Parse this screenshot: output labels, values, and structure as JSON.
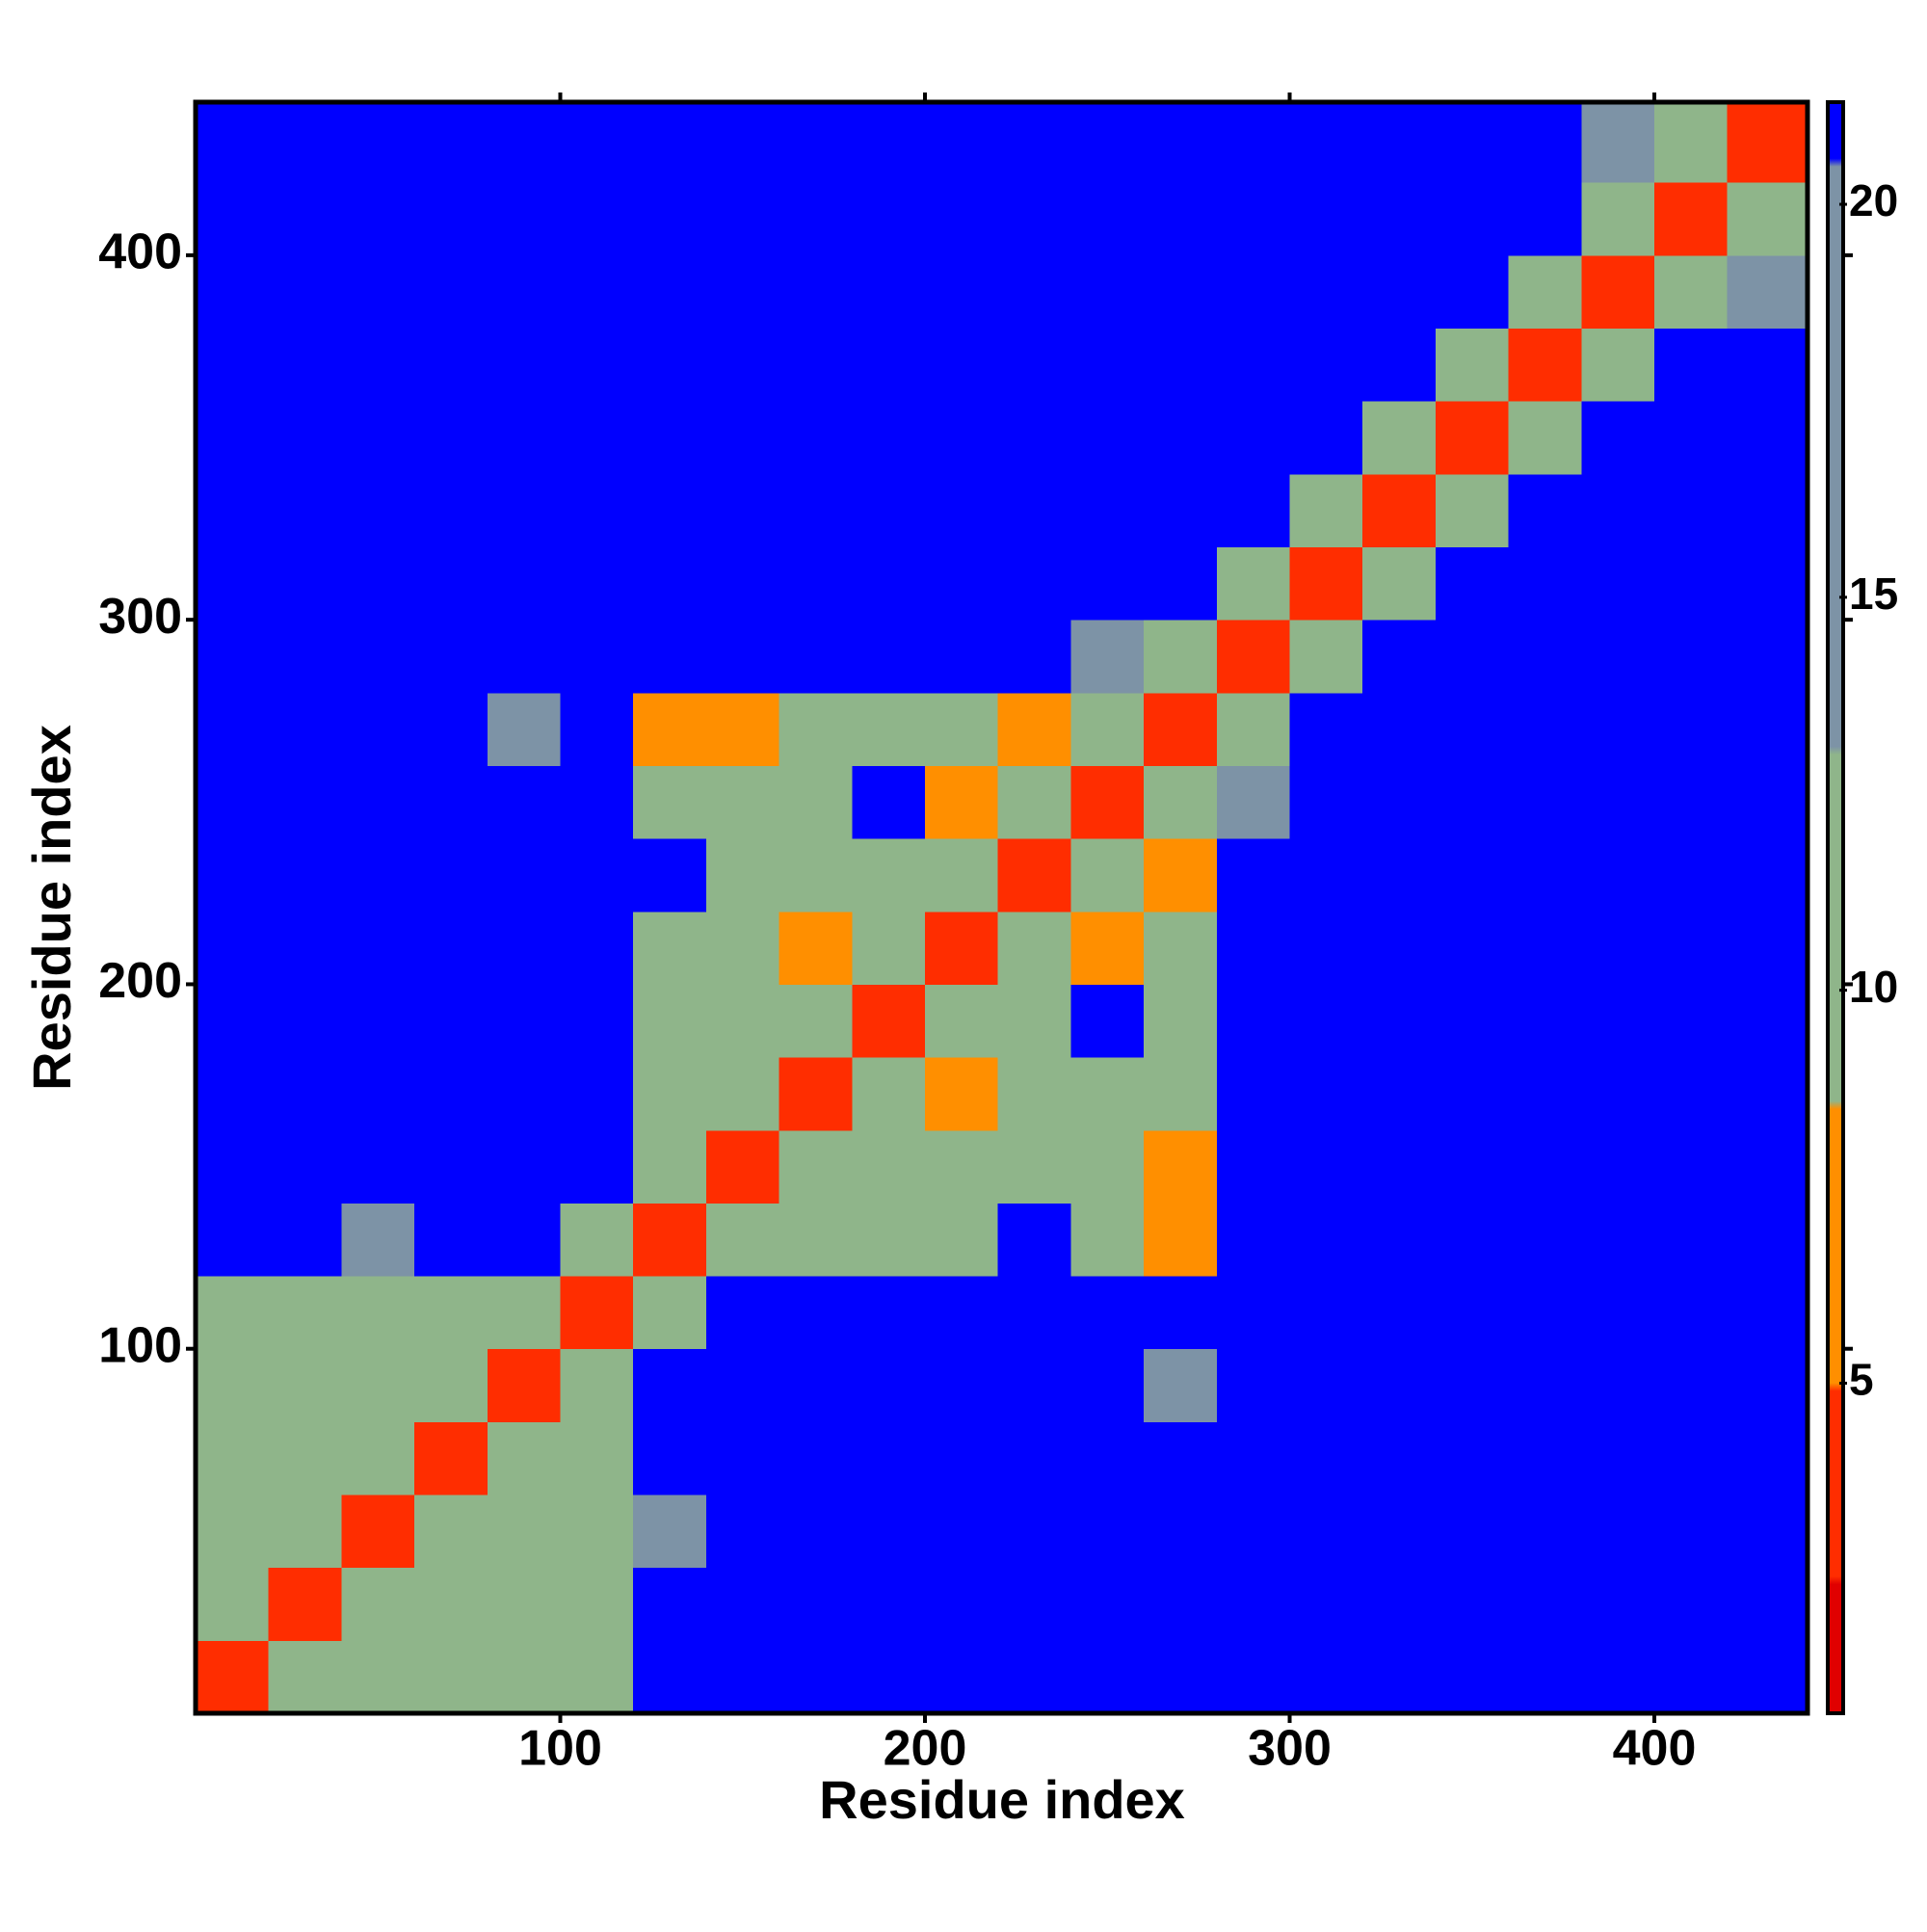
{
  "chart_data": {
    "type": "heatmap",
    "x_label": "Residue index",
    "y_label": "Residue index",
    "bins": [
      0,
      20,
      40,
      60,
      80,
      100,
      120,
      140,
      160,
      180,
      200,
      220,
      240,
      260,
      280,
      300,
      320,
      340,
      360,
      380,
      400,
      420,
      442
    ],
    "z": [
      [
        3,
        10,
        12,
        12,
        12,
        12,
        21,
        21,
        21,
        21,
        21,
        21,
        21,
        21,
        21,
        21,
        21,
        21,
        21,
        21,
        21,
        21
      ],
      [
        10,
        3,
        10,
        12,
        12,
        12,
        21,
        21,
        21,
        21,
        21,
        21,
        21,
        21,
        21,
        21,
        21,
        21,
        21,
        21,
        21,
        21
      ],
      [
        12,
        10,
        3,
        10,
        12,
        12,
        13,
        21,
        21,
        21,
        21,
        21,
        21,
        21,
        21,
        21,
        21,
        21,
        21,
        21,
        21,
        21
      ],
      [
        12,
        12,
        10,
        3,
        10,
        12,
        21,
        21,
        21,
        21,
        21,
        21,
        21,
        21,
        21,
        21,
        21,
        21,
        21,
        21,
        21,
        21
      ],
      [
        12,
        12,
        12,
        10,
        3,
        10,
        21,
        21,
        21,
        21,
        21,
        21,
        21,
        14,
        21,
        21,
        21,
        21,
        21,
        21,
        21,
        21
      ],
      [
        12,
        12,
        12,
        12,
        10,
        3,
        10,
        21,
        21,
        21,
        21,
        21,
        21,
        21,
        21,
        21,
        21,
        21,
        21,
        21,
        21,
        21
      ],
      [
        21,
        21,
        13,
        21,
        21,
        10,
        3,
        10,
        12,
        12,
        12,
        21,
        12,
        8,
        21,
        21,
        21,
        21,
        21,
        21,
        21,
        21
      ],
      [
        21,
        21,
        21,
        21,
        21,
        21,
        10,
        3,
        10,
        12,
        12,
        12,
        12,
        8,
        21,
        21,
        21,
        21,
        21,
        21,
        21,
        21
      ],
      [
        21,
        21,
        21,
        21,
        21,
        21,
        12,
        10,
        3,
        10,
        8,
        12,
        12,
        12,
        21,
        21,
        21,
        21,
        21,
        21,
        21,
        21
      ],
      [
        21,
        21,
        21,
        21,
        21,
        21,
        12,
        12,
        10,
        3,
        10,
        12,
        21,
        12,
        21,
        21,
        21,
        21,
        21,
        21,
        21,
        21
      ],
      [
        21,
        21,
        21,
        21,
        21,
        21,
        12,
        12,
        8,
        10,
        3,
        10,
        8,
        12,
        21,
        21,
        21,
        21,
        21,
        21,
        21,
        21
      ],
      [
        21,
        21,
        21,
        21,
        21,
        21,
        21,
        12,
        12,
        12,
        10,
        3,
        10,
        8,
        21,
        21,
        21,
        21,
        21,
        21,
        21,
        21
      ],
      [
        21,
        21,
        21,
        21,
        21,
        21,
        12,
        12,
        12,
        21,
        8,
        10,
        3,
        10,
        13,
        21,
        21,
        21,
        21,
        21,
        21,
        21
      ],
      [
        21,
        21,
        21,
        21,
        14,
        21,
        8,
        8,
        12,
        12,
        12,
        8,
        10,
        3,
        10,
        21,
        21,
        21,
        21,
        21,
        21,
        21
      ],
      [
        21,
        21,
        21,
        21,
        21,
        21,
        21,
        21,
        21,
        21,
        21,
        21,
        13,
        10,
        3,
        10,
        21,
        21,
        21,
        21,
        21,
        21
      ],
      [
        21,
        21,
        21,
        21,
        21,
        21,
        21,
        21,
        21,
        21,
        21,
        21,
        21,
        21,
        10,
        3,
        9,
        21,
        21,
        21,
        21,
        21
      ],
      [
        21,
        21,
        21,
        21,
        21,
        21,
        21,
        21,
        21,
        21,
        21,
        21,
        21,
        21,
        21,
        9,
        3,
        10,
        21,
        21,
        21,
        21
      ],
      [
        21,
        21,
        21,
        21,
        21,
        21,
        21,
        21,
        21,
        21,
        21,
        21,
        21,
        21,
        21,
        21,
        10,
        3,
        10,
        21,
        21,
        21
      ],
      [
        21,
        21,
        21,
        21,
        21,
        21,
        21,
        21,
        21,
        21,
        21,
        21,
        21,
        21,
        21,
        21,
        21,
        10,
        3,
        9,
        21,
        21
      ],
      [
        21,
        21,
        21,
        21,
        21,
        21,
        21,
        21,
        21,
        21,
        21,
        21,
        21,
        21,
        21,
        21,
        21,
        21,
        9,
        3,
        9,
        14
      ],
      [
        21,
        21,
        21,
        21,
        21,
        21,
        21,
        21,
        21,
        21,
        21,
        21,
        21,
        21,
        21,
        21,
        21,
        21,
        21,
        9,
        3,
        9
      ],
      [
        21,
        21,
        21,
        21,
        21,
        21,
        21,
        21,
        21,
        21,
        21,
        21,
        21,
        21,
        21,
        21,
        21,
        21,
        21,
        14,
        9,
        3
      ]
    ],
    "xlim": [
      0,
      442
    ],
    "ylim": [
      0,
      442
    ],
    "xticks": [
      100,
      200,
      300,
      400
    ],
    "yticks": [
      100,
      200,
      300,
      400
    ],
    "clim": [
      0.8,
      21.3
    ],
    "cticks": [
      5,
      10,
      15,
      20
    ]
  }
}
